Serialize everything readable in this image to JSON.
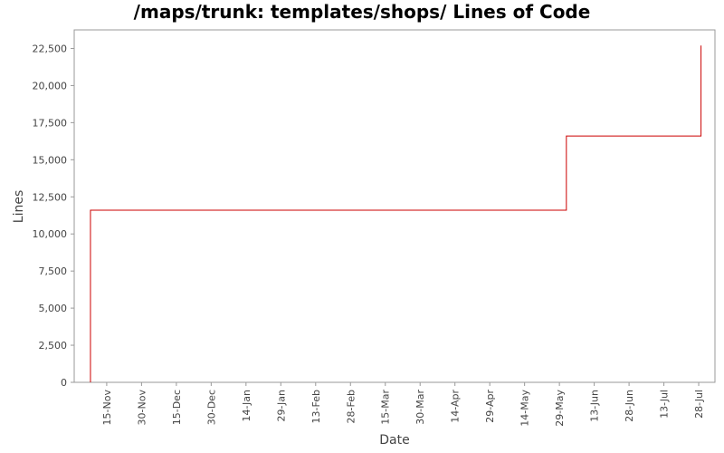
{
  "chart_data": {
    "type": "line",
    "title": "/maps/trunk: templates/shops/ Lines of Code",
    "x_label": "Date",
    "y_label": "Lines",
    "x": [
      -7,
      -7,
      198,
      198,
      256,
      256
    ],
    "series": [
      {
        "name": "Lines",
        "color": "#cc0000",
        "values": [
          0,
          11600,
          11600,
          16600,
          16600,
          22700
        ]
      }
    ],
    "xlim": [
      -14,
      262
    ],
    "ylim": [
      0,
      23750
    ],
    "xticks": [
      {
        "value": 0,
        "label": "15-Nov"
      },
      {
        "value": 15,
        "label": "30-Nov"
      },
      {
        "value": 30,
        "label": "15-Dec"
      },
      {
        "value": 45,
        "label": "30-Dec"
      },
      {
        "value": 60,
        "label": "14-Jan"
      },
      {
        "value": 75,
        "label": "29-Jan"
      },
      {
        "value": 90,
        "label": "13-Feb"
      },
      {
        "value": 105,
        "label": "28-Feb"
      },
      {
        "value": 120,
        "label": "15-Mar"
      },
      {
        "value": 135,
        "label": "30-Mar"
      },
      {
        "value": 150,
        "label": "14-Apr"
      },
      {
        "value": 165,
        "label": "29-Apr"
      },
      {
        "value": 180,
        "label": "14-May"
      },
      {
        "value": 195,
        "label": "29-May"
      },
      {
        "value": 210,
        "label": "13-Jun"
      },
      {
        "value": 225,
        "label": "28-Jun"
      },
      {
        "value": 240,
        "label": "13-Jul"
      },
      {
        "value": 255,
        "label": "28-Jul"
      }
    ],
    "yticks": [
      0,
      {
        "value": 2500,
        "label": "2,500"
      },
      {
        "value": 5000,
        "label": "5,000"
      },
      {
        "value": 7500,
        "label": "7,500"
      },
      {
        "value": 10000,
        "label": "10,000"
      },
      {
        "value": 12500,
        "label": "12,500"
      },
      {
        "value": 15000,
        "label": "15,000"
      },
      {
        "value": 17500,
        "label": "17,500"
      },
      {
        "value": 20000,
        "label": "20,000"
      },
      {
        "value": 22500,
        "label": "22,500"
      }
    ],
    "grid": false
  }
}
